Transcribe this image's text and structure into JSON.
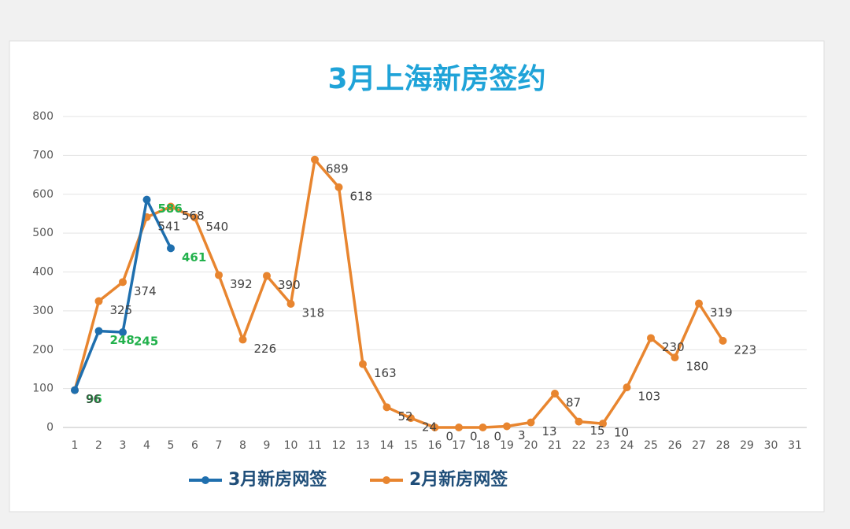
{
  "chart_data": {
    "type": "line",
    "title": "3月上海新房签约",
    "categories": [
      "1",
      "2",
      "3",
      "4",
      "5",
      "6",
      "7",
      "8",
      "9",
      "10",
      "11",
      "12",
      "13",
      "14",
      "15",
      "16",
      "17",
      "18",
      "19",
      "20",
      "21",
      "22",
      "23",
      "24",
      "25",
      "26",
      "27",
      "28",
      "29",
      "30",
      "31"
    ],
    "series": [
      {
        "name": "3月新房网签",
        "color": "#1f6fae",
        "label_color": "#22b14c",
        "values": [
          96,
          248,
          245,
          586,
          461,
          null,
          null,
          null,
          null,
          null,
          null,
          null,
          null,
          null,
          null,
          null,
          null,
          null,
          null,
          null,
          null,
          null,
          null,
          null,
          null,
          null,
          null,
          null,
          null,
          null,
          null
        ]
      },
      {
        "name": "2月新房网签",
        "color": "#e8852f",
        "label_color": "#404040",
        "values": [
          96,
          325,
          374,
          541,
          568,
          540,
          392,
          226,
          390,
          318,
          689,
          618,
          163,
          52,
          24,
          0,
          0,
          0,
          3,
          13,
          87,
          15,
          10,
          103,
          230,
          180,
          319,
          223,
          null,
          null,
          null
        ]
      }
    ],
    "ylim": [
      0,
      800
    ],
    "yticks": [
      0,
      100,
      200,
      300,
      400,
      500,
      600,
      700,
      800
    ],
    "grid": true,
    "legend": "bottom"
  }
}
